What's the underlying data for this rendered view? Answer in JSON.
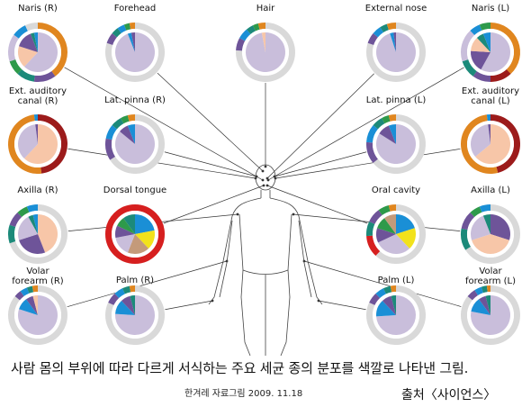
{
  "colors": {
    "lavender": "#c9bedb",
    "peach": "#f7c6a8",
    "purple": "#6e5499",
    "orange": "#e0861f",
    "darkred": "#9c1b1b",
    "teal": "#1c8a7a",
    "green": "#2e9a4a",
    "blue": "#1a8fd6",
    "yellow": "#f2e21b",
    "tan": "#c49a7a",
    "red": "#d61f1f",
    "ring": "#d9d9d9",
    "line": "#333333"
  },
  "sites": [
    {
      "label": "Naris (R)",
      "body_part": "right nostril",
      "inner": [
        {
          "c": "lavender",
          "v": 62
        },
        {
          "c": "peach",
          "v": 18
        },
        {
          "c": "purple",
          "v": 14
        },
        {
          "c": "teal",
          "v": 3
        },
        {
          "c": "blue",
          "v": 3
        }
      ],
      "outer": [
        {
          "c": "orange",
          "v": 40
        },
        {
          "c": "purple",
          "v": 12
        },
        {
          "c": "teal",
          "v": 10
        },
        {
          "c": "green",
          "v": 8
        },
        {
          "c": "lavender",
          "v": 15
        },
        {
          "c": "blue",
          "v": 8
        },
        {
          "c": "ring",
          "v": 7
        }
      ]
    },
    {
      "label": "Forehead",
      "body_part": "forehead",
      "inner": [
        {
          "c": "lavender",
          "v": 94
        },
        {
          "c": "blue",
          "v": 3
        },
        {
          "c": "purple",
          "v": 3
        }
      ],
      "outer": [
        {
          "c": "ring",
          "v": 80
        },
        {
          "c": "purple",
          "v": 6
        },
        {
          "c": "teal",
          "v": 4
        },
        {
          "c": "blue",
          "v": 4
        },
        {
          "c": "green",
          "v": 3
        },
        {
          "c": "orange",
          "v": 3
        }
      ]
    },
    {
      "label": "Hair",
      "body_part": "hair",
      "inner": [
        {
          "c": "lavender",
          "v": 97
        },
        {
          "c": "peach",
          "v": 3
        }
      ],
      "outer": [
        {
          "c": "ring",
          "v": 76
        },
        {
          "c": "purple",
          "v": 7
        },
        {
          "c": "blue",
          "v": 6
        },
        {
          "c": "teal",
          "v": 4
        },
        {
          "c": "green",
          "v": 3
        },
        {
          "c": "orange",
          "v": 4
        }
      ]
    },
    {
      "label": "External nose",
      "body_part": "external nose",
      "inner": [
        {
          "c": "lavender",
          "v": 95
        },
        {
          "c": "blue",
          "v": 3
        },
        {
          "c": "purple",
          "v": 2
        }
      ],
      "outer": [
        {
          "c": "ring",
          "v": 80
        },
        {
          "c": "purple",
          "v": 6
        },
        {
          "c": "blue",
          "v": 5
        },
        {
          "c": "teal",
          "v": 4
        },
        {
          "c": "orange",
          "v": 5
        }
      ]
    },
    {
      "label": "Naris (L)",
      "body_part": "left nostril",
      "inner": [
        {
          "c": "lavender",
          "v": 58
        },
        {
          "c": "purple",
          "v": 18
        },
        {
          "c": "peach",
          "v": 12
        },
        {
          "c": "teal",
          "v": 6
        },
        {
          "c": "blue",
          "v": 6
        }
      ],
      "outer": [
        {
          "c": "orange",
          "v": 38
        },
        {
          "c": "darkred",
          "v": 12
        },
        {
          "c": "purple",
          "v": 10
        },
        {
          "c": "teal",
          "v": 10
        },
        {
          "c": "lavender",
          "v": 18
        },
        {
          "c": "blue",
          "v": 6
        },
        {
          "c": "green",
          "v": 6
        }
      ]
    },
    {
      "label": "Ext. auditory canal (R)",
      "body_part": "right ear canal",
      "inner": [
        {
          "c": "peach",
          "v": 62
        },
        {
          "c": "lavender",
          "v": 36
        },
        {
          "c": "purple",
          "v": 2
        }
      ],
      "outer": [
        {
          "c": "darkred",
          "v": 48
        },
        {
          "c": "orange",
          "v": 50
        },
        {
          "c": "blue",
          "v": 2
        }
      ]
    },
    {
      "label": "Lat. pinna (R)",
      "body_part": "right outer ear",
      "inner": [
        {
          "c": "lavender",
          "v": 86
        },
        {
          "c": "purple",
          "v": 8
        },
        {
          "c": "blue",
          "v": 6
        }
      ],
      "outer": [
        {
          "c": "ring",
          "v": 66
        },
        {
          "c": "purple",
          "v": 12
        },
        {
          "c": "blue",
          "v": 8
        },
        {
          "c": "teal",
          "v": 6
        },
        {
          "c": "green",
          "v": 4
        },
        {
          "c": "orange",
          "v": 4
        }
      ]
    },
    {
      "label": "Lat. pinna (L)",
      "body_part": "left outer ear",
      "inner": [
        {
          "c": "lavender",
          "v": 84
        },
        {
          "c": "purple",
          "v": 10
        },
        {
          "c": "blue",
          "v": 6
        }
      ],
      "outer": [
        {
          "c": "ring",
          "v": 64
        },
        {
          "c": "purple",
          "v": 12
        },
        {
          "c": "blue",
          "v": 10
        },
        {
          "c": "teal",
          "v": 6
        },
        {
          "c": "green",
          "v": 4
        },
        {
          "c": "orange",
          "v": 4
        }
      ]
    },
    {
      "label": "Ext. auditory canal (L)",
      "body_part": "left ear canal",
      "inner": [
        {
          "c": "peach",
          "v": 64
        },
        {
          "c": "lavender",
          "v": 34
        },
        {
          "c": "purple",
          "v": 2
        }
      ],
      "outer": [
        {
          "c": "darkred",
          "v": 46
        },
        {
          "c": "orange",
          "v": 52
        },
        {
          "c": "blue",
          "v": 2
        }
      ]
    },
    {
      "label": "Axilla (R)",
      "body_part": "right armpit",
      "inner": [
        {
          "c": "peach",
          "v": 44
        },
        {
          "c": "purple",
          "v": 26
        },
        {
          "c": "lavender",
          "v": 22
        },
        {
          "c": "teal",
          "v": 4
        },
        {
          "c": "blue",
          "v": 4
        }
      ],
      "outer": [
        {
          "c": "ring",
          "v": 70
        },
        {
          "c": "teal",
          "v": 10
        },
        {
          "c": "purple",
          "v": 8
        },
        {
          "c": "green",
          "v": 6
        },
        {
          "c": "blue",
          "v": 6
        }
      ]
    },
    {
      "label": "Dorsal tongue",
      "body_part": "tongue",
      "inner": [
        {
          "c": "blue",
          "v": 22
        },
        {
          "c": "yellow",
          "v": 16
        },
        {
          "c": "tan",
          "v": 18
        },
        {
          "c": "lavender",
          "v": 16
        },
        {
          "c": "purple",
          "v": 10
        },
        {
          "c": "green",
          "v": 8
        },
        {
          "c": "teal",
          "v": 10
        }
      ],
      "outer": [
        {
          "c": "red",
          "v": 100
        }
      ]
    },
    {
      "label": "Oral cavity",
      "body_part": "mouth",
      "inner": [
        {
          "c": "blue",
          "v": 20
        },
        {
          "c": "yellow",
          "v": 18
        },
        {
          "c": "lavender",
          "v": 30
        },
        {
          "c": "purple",
          "v": 12
        },
        {
          "c": "green",
          "v": 10
        },
        {
          "c": "tan",
          "v": 10
        }
      ],
      "outer": [
        {
          "c": "ring",
          "v": 62
        },
        {
          "c": "red",
          "v": 12
        },
        {
          "c": "teal",
          "v": 8
        },
        {
          "c": "purple",
          "v": 8
        },
        {
          "c": "green",
          "v": 6
        },
        {
          "c": "orange",
          "v": 4
        }
      ]
    },
    {
      "label": "Axilla (L)",
      "body_part": "left armpit",
      "inner": [
        {
          "c": "purple",
          "v": 30
        },
        {
          "c": "peach",
          "v": 40
        },
        {
          "c": "lavender",
          "v": 24
        },
        {
          "c": "teal",
          "v": 6
        }
      ],
      "outer": [
        {
          "c": "ring",
          "v": 66
        },
        {
          "c": "teal",
          "v": 12
        },
        {
          "c": "purple",
          "v": 10
        },
        {
          "c": "green",
          "v": 6
        },
        {
          "c": "blue",
          "v": 6
        }
      ]
    },
    {
      "label": "Volar forearm (R)",
      "body_part": "right inner forearm",
      "inner": [
        {
          "c": "lavender",
          "v": 80
        },
        {
          "c": "blue",
          "v": 10
        },
        {
          "c": "purple",
          "v": 6
        },
        {
          "c": "peach",
          "v": 4
        }
      ],
      "outer": [
        {
          "c": "ring",
          "v": 86
        },
        {
          "c": "purple",
          "v": 4
        },
        {
          "c": "blue",
          "v": 4
        },
        {
          "c": "teal",
          "v": 3
        },
        {
          "c": "orange",
          "v": 3
        }
      ]
    },
    {
      "label": "Palm (R)",
      "body_part": "right palm",
      "inner": [
        {
          "c": "lavender",
          "v": 76
        },
        {
          "c": "blue",
          "v": 12
        },
        {
          "c": "purple",
          "v": 8
        },
        {
          "c": "teal",
          "v": 4
        }
      ],
      "outer": [
        {
          "c": "ring",
          "v": 82
        },
        {
          "c": "purple",
          "v": 6
        },
        {
          "c": "blue",
          "v": 5
        },
        {
          "c": "teal",
          "v": 4
        },
        {
          "c": "orange",
          "v": 3
        }
      ]
    },
    {
      "label": "Palm (L)",
      "body_part": "left palm",
      "inner": [
        {
          "c": "lavender",
          "v": 74
        },
        {
          "c": "blue",
          "v": 14
        },
        {
          "c": "purple",
          "v": 8
        },
        {
          "c": "teal",
          "v": 4
        }
      ],
      "outer": [
        {
          "c": "ring",
          "v": 82
        },
        {
          "c": "purple",
          "v": 6
        },
        {
          "c": "blue",
          "v": 5
        },
        {
          "c": "teal",
          "v": 4
        },
        {
          "c": "orange",
          "v": 3
        }
      ]
    },
    {
      "label": "Volar forearm (L)",
      "body_part": "left inner forearm",
      "inner": [
        {
          "c": "lavender",
          "v": 78
        },
        {
          "c": "blue",
          "v": 12
        },
        {
          "c": "purple",
          "v": 6
        },
        {
          "c": "teal",
          "v": 4
        }
      ],
      "outer": [
        {
          "c": "ring",
          "v": 86
        },
        {
          "c": "purple",
          "v": 5
        },
        {
          "c": "blue",
          "v": 4
        },
        {
          "c": "teal",
          "v": 3
        },
        {
          "c": "orange",
          "v": 2
        }
      ]
    }
  ],
  "caption": "사람 몸의 부위에 따라 다르게 서식하는 주요 세균 종의 분포를 색깔로 나타낸 그림.",
  "credit": "한겨레 자료그림 2009. 11.18",
  "source": "출처〈사이언스〉"
}
